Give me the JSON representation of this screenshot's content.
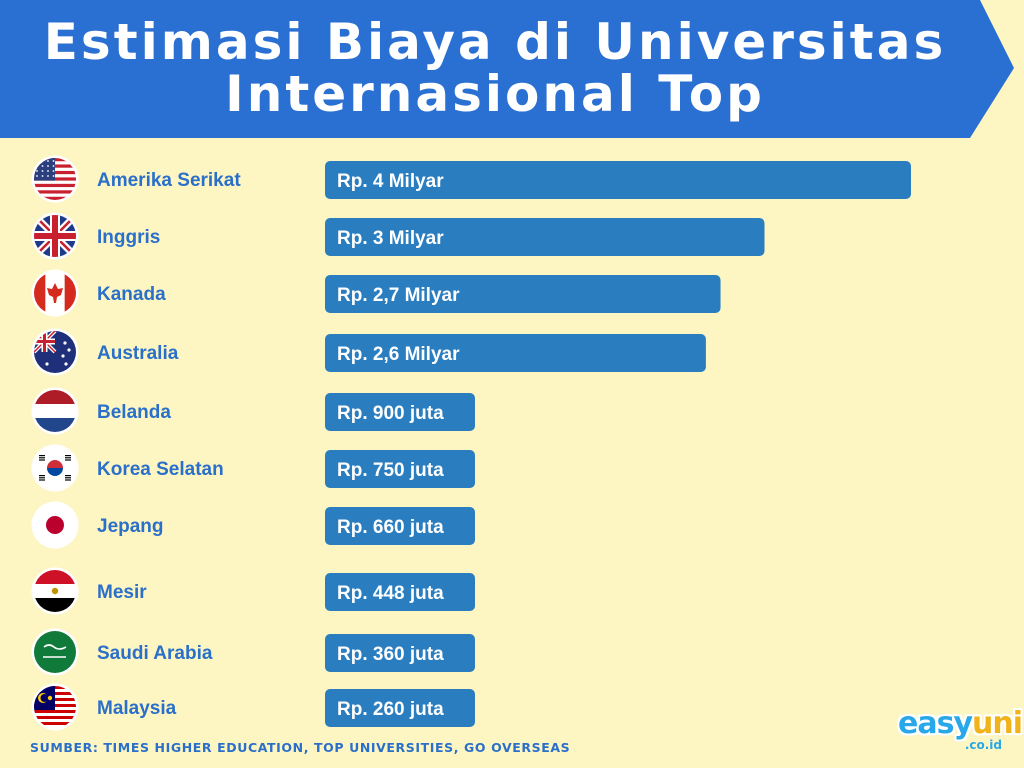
{
  "header": {
    "title_line1": "Estimasi Biaya di Universitas",
    "title_line2": "Internasional Top",
    "bg_color": "#2a6fd2"
  },
  "colors": {
    "background": "#fdf6c3",
    "bar": "#2a7ec0",
    "label": "#2a6fc9"
  },
  "chart_data": {
    "type": "bar",
    "orientation": "horizontal",
    "unit": "Rp",
    "categories": [
      "Amerika Serikat",
      "Inggris",
      "Kanada",
      "Australia",
      "Belanda",
      "Korea Selatan",
      "Jepang",
      "Mesir",
      "Saudi Arabia",
      "Malaysia"
    ],
    "values": [
      4000000000,
      3000000000,
      2700000000,
      2600000000,
      900000000,
      750000000,
      660000000,
      448000000,
      360000000,
      260000000
    ],
    "value_labels": [
      "Rp. 4 Milyar",
      "Rp. 3 Milyar",
      "Rp. 2,7 Milyar",
      "Rp. 2,6 Milyar",
      "Rp. 900 juta",
      "Rp. 750 juta",
      "Rp. 660 juta",
      "Rp. 448 juta",
      "Rp. 360 juta",
      "Rp. 260 juta"
    ],
    "flags": [
      "us-flag-icon",
      "uk-flag-icon",
      "canada-flag-icon",
      "australia-flag-icon",
      "netherlands-flag-icon",
      "south-korea-flag-icon",
      "japan-flag-icon",
      "egypt-flag-icon",
      "saudi-arabia-flag-icon",
      "malaysia-flag-icon"
    ],
    "grid": false,
    "legend": "none"
  },
  "footer": {
    "source": "SUMBER: TIMES HIGHER EDUCATION, TOP UNIVERSITIES, GO OVERSEAS",
    "logo_part1": "easy",
    "logo_part2": "uni",
    "logo_tld": ".co.id"
  }
}
